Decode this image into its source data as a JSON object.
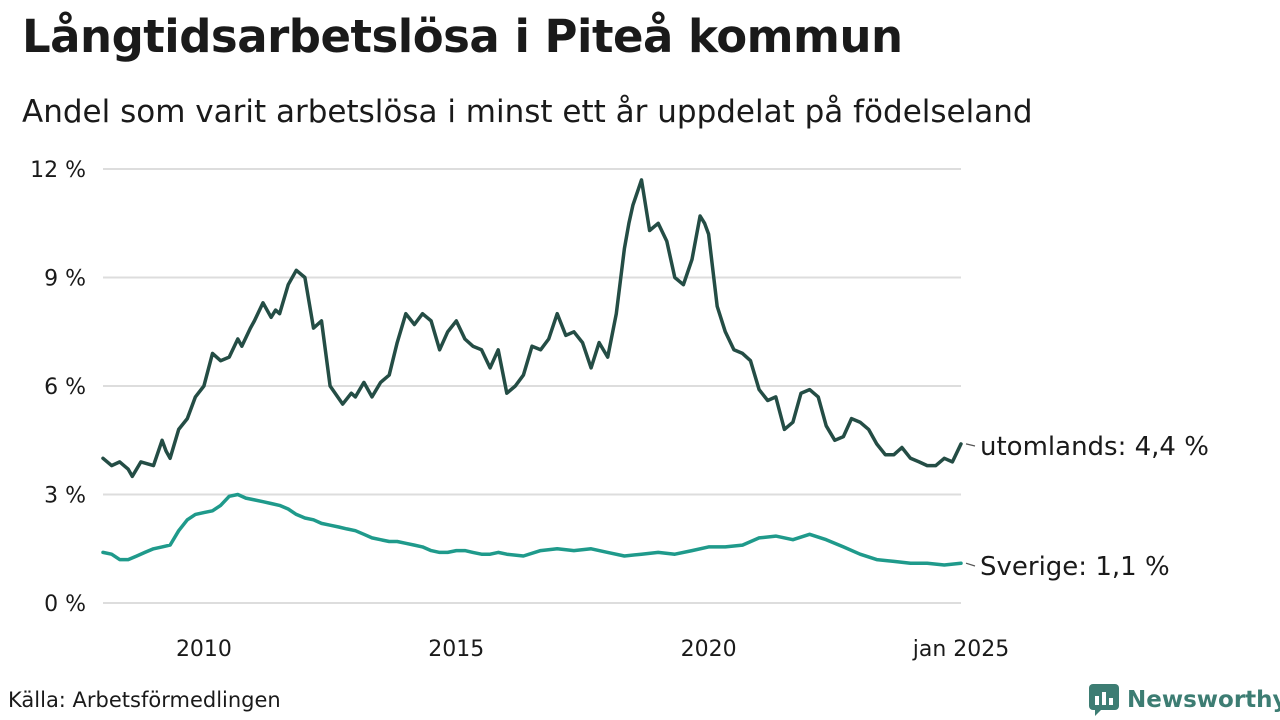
{
  "header": {
    "title": "Långtidsarbetslösa i Piteå kommun",
    "subtitle": "Andel som varit arbetslösa i minst ett år uppdelat på födelseland"
  },
  "footer": {
    "source": "Källa: Arbetsförmedlingen",
    "brand": "Newsworthy"
  },
  "colors": {
    "utomlands": "#244d45",
    "sverige": "#1f9a8b",
    "grid": "#dddddd",
    "brand": "#3d7d73"
  },
  "chart_data": {
    "type": "line",
    "title": "Långtidsarbetslösa i Piteå kommun",
    "subtitle": "Andel som varit arbetslösa i minst ett år uppdelat på födelseland",
    "xlabel": "",
    "ylabel": "",
    "x_range": [
      2008.0,
      2025.0
    ],
    "ylim": [
      0,
      12
    ],
    "y_ticks": [
      0,
      3,
      6,
      9,
      12
    ],
    "y_tick_labels": [
      "0 %",
      "3 %",
      "6 %",
      "9 %",
      "12 %"
    ],
    "x_ticks": [
      2010,
      2015,
      2020,
      2025.0
    ],
    "x_tick_labels": [
      "2010",
      "2015",
      "2020",
      "jan 2025"
    ],
    "grid": true,
    "series": [
      {
        "name": "utomlands",
        "end_label": "utomlands: 4,4 %",
        "x": [
          2008.0,
          2008.17,
          2008.33,
          2008.5,
          2008.58,
          2008.75,
          2009.0,
          2009.17,
          2009.25,
          2009.33,
          2009.5,
          2009.67,
          2009.83,
          2010.0,
          2010.17,
          2010.33,
          2010.5,
          2010.67,
          2010.75,
          2010.92,
          2011.0,
          2011.17,
          2011.33,
          2011.42,
          2011.5,
          2011.67,
          2011.83,
          2012.0,
          2012.17,
          2012.33,
          2012.5,
          2012.75,
          2012.92,
          2013.0,
          2013.17,
          2013.33,
          2013.5,
          2013.67,
          2013.83,
          2014.0,
          2014.17,
          2014.33,
          2014.5,
          2014.67,
          2014.83,
          2015.0,
          2015.17,
          2015.33,
          2015.5,
          2015.67,
          2015.83,
          2016.0,
          2016.17,
          2016.33,
          2016.5,
          2016.67,
          2016.83,
          2017.0,
          2017.17,
          2017.33,
          2017.5,
          2017.67,
          2017.83,
          2018.0,
          2018.17,
          2018.33,
          2018.42,
          2018.5,
          2018.67,
          2018.83,
          2019.0,
          2019.17,
          2019.33,
          2019.5,
          2019.67,
          2019.83,
          2019.92,
          2020.0,
          2020.17,
          2020.33,
          2020.5,
          2020.67,
          2020.83,
          2021.0,
          2021.17,
          2021.33,
          2021.5,
          2021.67,
          2021.83,
          2022.0,
          2022.17,
          2022.33,
          2022.5,
          2022.67,
          2022.83,
          2023.0,
          2023.17,
          2023.33,
          2023.5,
          2023.67,
          2023.83,
          2024.0,
          2024.17,
          2024.33,
          2024.5,
          2024.67,
          2024.83,
          2025.0
        ],
        "values": [
          4.0,
          3.8,
          3.9,
          3.7,
          3.5,
          3.9,
          3.8,
          4.5,
          4.2,
          4.0,
          4.8,
          5.1,
          5.7,
          6.0,
          6.9,
          6.7,
          6.8,
          7.3,
          7.1,
          7.6,
          7.8,
          8.3,
          7.9,
          8.1,
          8.0,
          8.8,
          9.2,
          9.0,
          7.6,
          7.8,
          6.0,
          5.5,
          5.8,
          5.7,
          6.1,
          5.7,
          6.1,
          6.3,
          7.2,
          8.0,
          7.7,
          8.0,
          7.8,
          7.0,
          7.5,
          7.8,
          7.3,
          7.1,
          7.0,
          6.5,
          7.0,
          5.8,
          6.0,
          6.3,
          7.1,
          7.0,
          7.3,
          8.0,
          7.4,
          7.5,
          7.2,
          6.5,
          7.2,
          6.8,
          8.0,
          9.8,
          10.5,
          11.0,
          11.7,
          10.3,
          10.5,
          10.0,
          9.0,
          8.8,
          9.5,
          10.7,
          10.5,
          10.2,
          8.2,
          7.5,
          7.0,
          6.9,
          6.7,
          5.9,
          5.6,
          5.7,
          4.8,
          5.0,
          5.8,
          5.9,
          5.7,
          4.9,
          4.5,
          4.6,
          5.1,
          5.0,
          4.8,
          4.4,
          4.1,
          4.1,
          4.3,
          4.0,
          3.9,
          3.8,
          3.8,
          4.0,
          3.9,
          4.4
        ]
      },
      {
        "name": "Sverige",
        "end_label": "Sverige: 1,1 %",
        "x": [
          2008.0,
          2008.17,
          2008.33,
          2008.5,
          2008.67,
          2008.83,
          2009.0,
          2009.17,
          2009.33,
          2009.5,
          2009.67,
          2009.83,
          2010.0,
          2010.17,
          2010.33,
          2010.5,
          2010.67,
          2010.83,
          2011.0,
          2011.17,
          2011.33,
          2011.5,
          2011.67,
          2011.83,
          2012.0,
          2012.17,
          2012.33,
          2012.5,
          2012.67,
          2012.83,
          2013.0,
          2013.17,
          2013.33,
          2013.5,
          2013.67,
          2013.83,
          2014.0,
          2014.17,
          2014.33,
          2014.5,
          2014.67,
          2014.83,
          2015.0,
          2015.17,
          2015.33,
          2015.5,
          2015.67,
          2015.83,
          2016.0,
          2016.33,
          2016.67,
          2017.0,
          2017.33,
          2017.67,
          2018.0,
          2018.33,
          2018.67,
          2019.0,
          2019.33,
          2019.67,
          2020.0,
          2020.33,
          2020.67,
          2021.0,
          2021.33,
          2021.67,
          2022.0,
          2022.33,
          2022.67,
          2023.0,
          2023.33,
          2023.67,
          2024.0,
          2024.33,
          2024.67,
          2025.0
        ],
        "values": [
          1.4,
          1.35,
          1.2,
          1.2,
          1.3,
          1.4,
          1.5,
          1.55,
          1.6,
          2.0,
          2.3,
          2.45,
          2.5,
          2.55,
          2.7,
          2.95,
          3.0,
          2.9,
          2.85,
          2.8,
          2.75,
          2.7,
          2.6,
          2.45,
          2.35,
          2.3,
          2.2,
          2.15,
          2.1,
          2.05,
          2.0,
          1.9,
          1.8,
          1.75,
          1.7,
          1.7,
          1.65,
          1.6,
          1.55,
          1.45,
          1.4,
          1.4,
          1.45,
          1.45,
          1.4,
          1.35,
          1.35,
          1.4,
          1.35,
          1.3,
          1.45,
          1.5,
          1.45,
          1.5,
          1.4,
          1.3,
          1.35,
          1.4,
          1.35,
          1.45,
          1.55,
          1.55,
          1.6,
          1.8,
          1.85,
          1.75,
          1.9,
          1.75,
          1.55,
          1.35,
          1.2,
          1.15,
          1.1,
          1.1,
          1.05,
          1.1
        ]
      }
    ]
  }
}
